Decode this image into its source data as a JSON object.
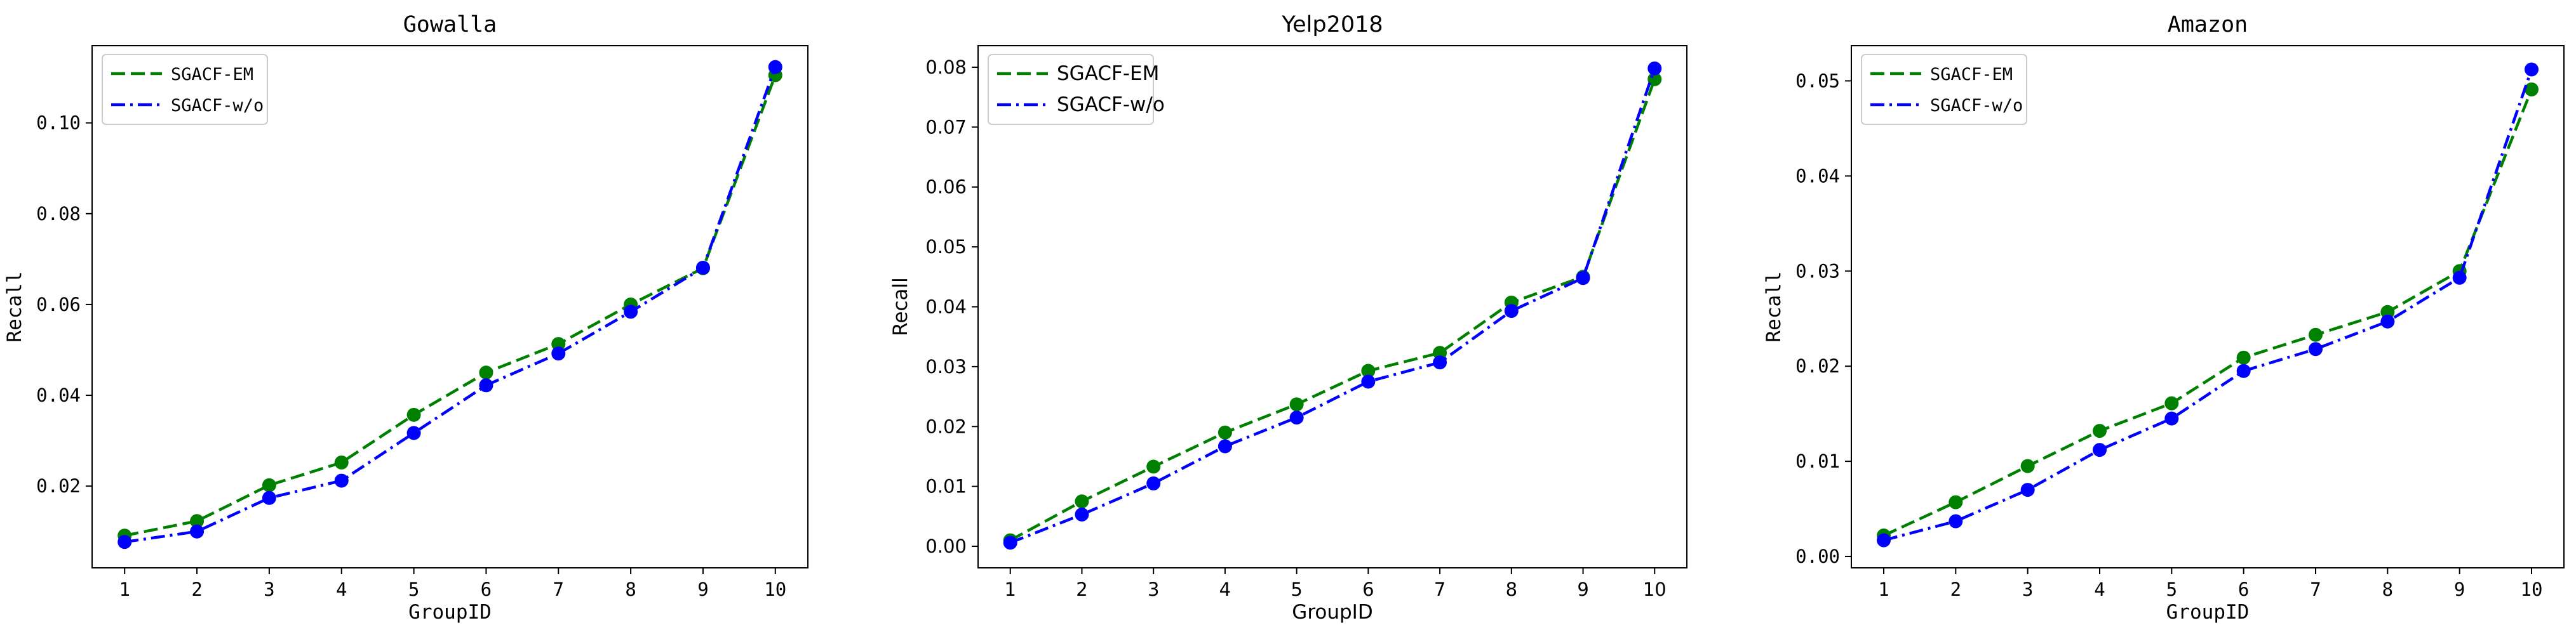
{
  "chart_data": [
    {
      "type": "line",
      "title": "Gowalla",
      "xlabel": "GroupID",
      "ylabel": "Recall",
      "categories": [
        1,
        2,
        3,
        4,
        5,
        6,
        7,
        8,
        9,
        10
      ],
      "xlim": [
        0.55,
        10.45
      ],
      "ylim": [
        0.002,
        0.117
      ],
      "yticks": [
        0.02,
        0.04,
        0.06,
        0.08,
        0.1
      ],
      "ytick_labels": [
        "0.02",
        "0.04",
        "0.06",
        "0.08",
        "0.10"
      ],
      "legend_position": "top-left",
      "series": [
        {
          "name": "SGACF-EM",
          "color": "#008000",
          "linestyle": "dashed",
          "values": [
            0.0091,
            0.0123,
            0.0202,
            0.0252,
            0.0357,
            0.045,
            0.0513,
            0.06,
            0.068,
            0.1105
          ]
        },
        {
          "name": "SGACF-w/o",
          "color": "#0000ff",
          "linestyle": "dashdot",
          "values": [
            0.0077,
            0.01,
            0.0174,
            0.0212,
            0.0317,
            0.0422,
            0.0492,
            0.0584,
            0.0681,
            0.1123
          ]
        }
      ]
    },
    {
      "type": "line",
      "title": "Yelp2018",
      "xlabel": "GroupID",
      "ylabel": "Recall",
      "categories": [
        1,
        2,
        3,
        4,
        5,
        6,
        7,
        8,
        9,
        10
      ],
      "xlim": [
        0.55,
        10.45
      ],
      "ylim": [
        -0.0036,
        0.0836
      ],
      "yticks": [
        0.0,
        0.01,
        0.02,
        0.03,
        0.04,
        0.05,
        0.06,
        0.07,
        0.08
      ],
      "ytick_labels": [
        "0.00",
        "0.01",
        "0.02",
        "0.03",
        "0.04",
        "0.05",
        "0.06",
        "0.07",
        "0.08"
      ],
      "legend_position": "top-left",
      "series": [
        {
          "name": "SGACF-EM",
          "color": "#008000",
          "linestyle": "dashed",
          "values": [
            0.001,
            0.0075,
            0.0133,
            0.019,
            0.0237,
            0.0293,
            0.0323,
            0.0407,
            0.045,
            0.078
          ]
        },
        {
          "name": "SGACF-w/o",
          "color": "#0000ff",
          "linestyle": "dashdot",
          "values": [
            0.0006,
            0.0053,
            0.0105,
            0.0167,
            0.0215,
            0.0275,
            0.0307,
            0.0393,
            0.0448,
            0.0798
          ]
        }
      ]
    },
    {
      "type": "line",
      "title": "Amazon",
      "xlabel": "GroupID",
      "ylabel": "Recall",
      "categories": [
        1,
        2,
        3,
        4,
        5,
        6,
        7,
        8,
        9,
        10
      ],
      "xlim": [
        0.55,
        10.45
      ],
      "ylim": [
        -0.0012,
        0.0537
      ],
      "yticks": [
        0.0,
        0.01,
        0.02,
        0.03,
        0.04,
        0.05
      ],
      "ytick_labels": [
        "0.00",
        "0.01",
        "0.02",
        "0.03",
        "0.04",
        "0.05"
      ],
      "legend_position": "top-left",
      "series": [
        {
          "name": "SGACF-EM",
          "color": "#008000",
          "linestyle": "dashed",
          "values": [
            0.0022,
            0.0057,
            0.0095,
            0.0132,
            0.0161,
            0.0209,
            0.0233,
            0.0257,
            0.03,
            0.0491
          ]
        },
        {
          "name": "SGACF-w/o",
          "color": "#0000ff",
          "linestyle": "dashdot",
          "values": [
            0.0017,
            0.0037,
            0.007,
            0.0112,
            0.0145,
            0.0195,
            0.0218,
            0.0247,
            0.0293,
            0.0512
          ]
        }
      ]
    }
  ]
}
